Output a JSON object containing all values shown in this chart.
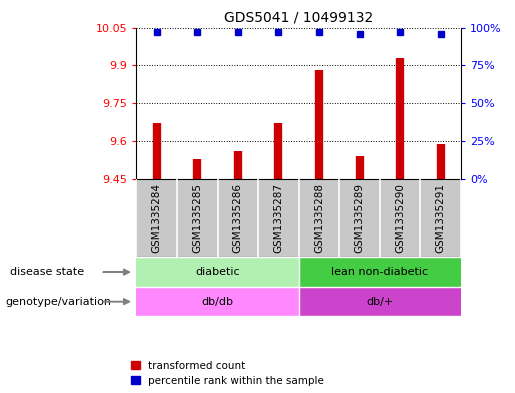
{
  "title": "GDS5041 / 10499132",
  "samples": [
    "GSM1335284",
    "GSM1335285",
    "GSM1335286",
    "GSM1335287",
    "GSM1335288",
    "GSM1335289",
    "GSM1335290",
    "GSM1335291"
  ],
  "transformed_counts": [
    9.67,
    9.53,
    9.56,
    9.67,
    9.88,
    9.54,
    9.93,
    9.59
  ],
  "percentile_ranks": [
    97,
    97,
    97,
    97,
    97,
    96,
    97,
    96
  ],
  "ymin": 9.45,
  "ymax": 10.05,
  "yticks": [
    9.45,
    9.6,
    9.75,
    9.9,
    10.05
  ],
  "y2min": 0,
  "y2max": 100,
  "y2ticks": [
    0,
    25,
    50,
    75,
    100
  ],
  "bar_color": "#cc0000",
  "dot_color": "#0000cc",
  "disease_state_groups": [
    {
      "label": "diabetic",
      "start": 0,
      "end": 4,
      "color": "#b2f0b2"
    },
    {
      "label": "lean non-diabetic",
      "start": 4,
      "end": 8,
      "color": "#44cc44"
    }
  ],
  "genotype_groups": [
    {
      "label": "db/db",
      "start": 0,
      "end": 4,
      "color": "#ff88ff"
    },
    {
      "label": "db/+",
      "start": 4,
      "end": 8,
      "color": "#cc44cc"
    }
  ],
  "row_label_disease": "disease state",
  "row_label_geno": "genotype/variation",
  "legend_items": [
    {
      "color": "#cc0000",
      "label": "transformed count"
    },
    {
      "color": "#0000cc",
      "label": "percentile rank within the sample"
    }
  ],
  "sample_bg_color": "#c8c8c8",
  "sample_divider_color": "#ffffff"
}
